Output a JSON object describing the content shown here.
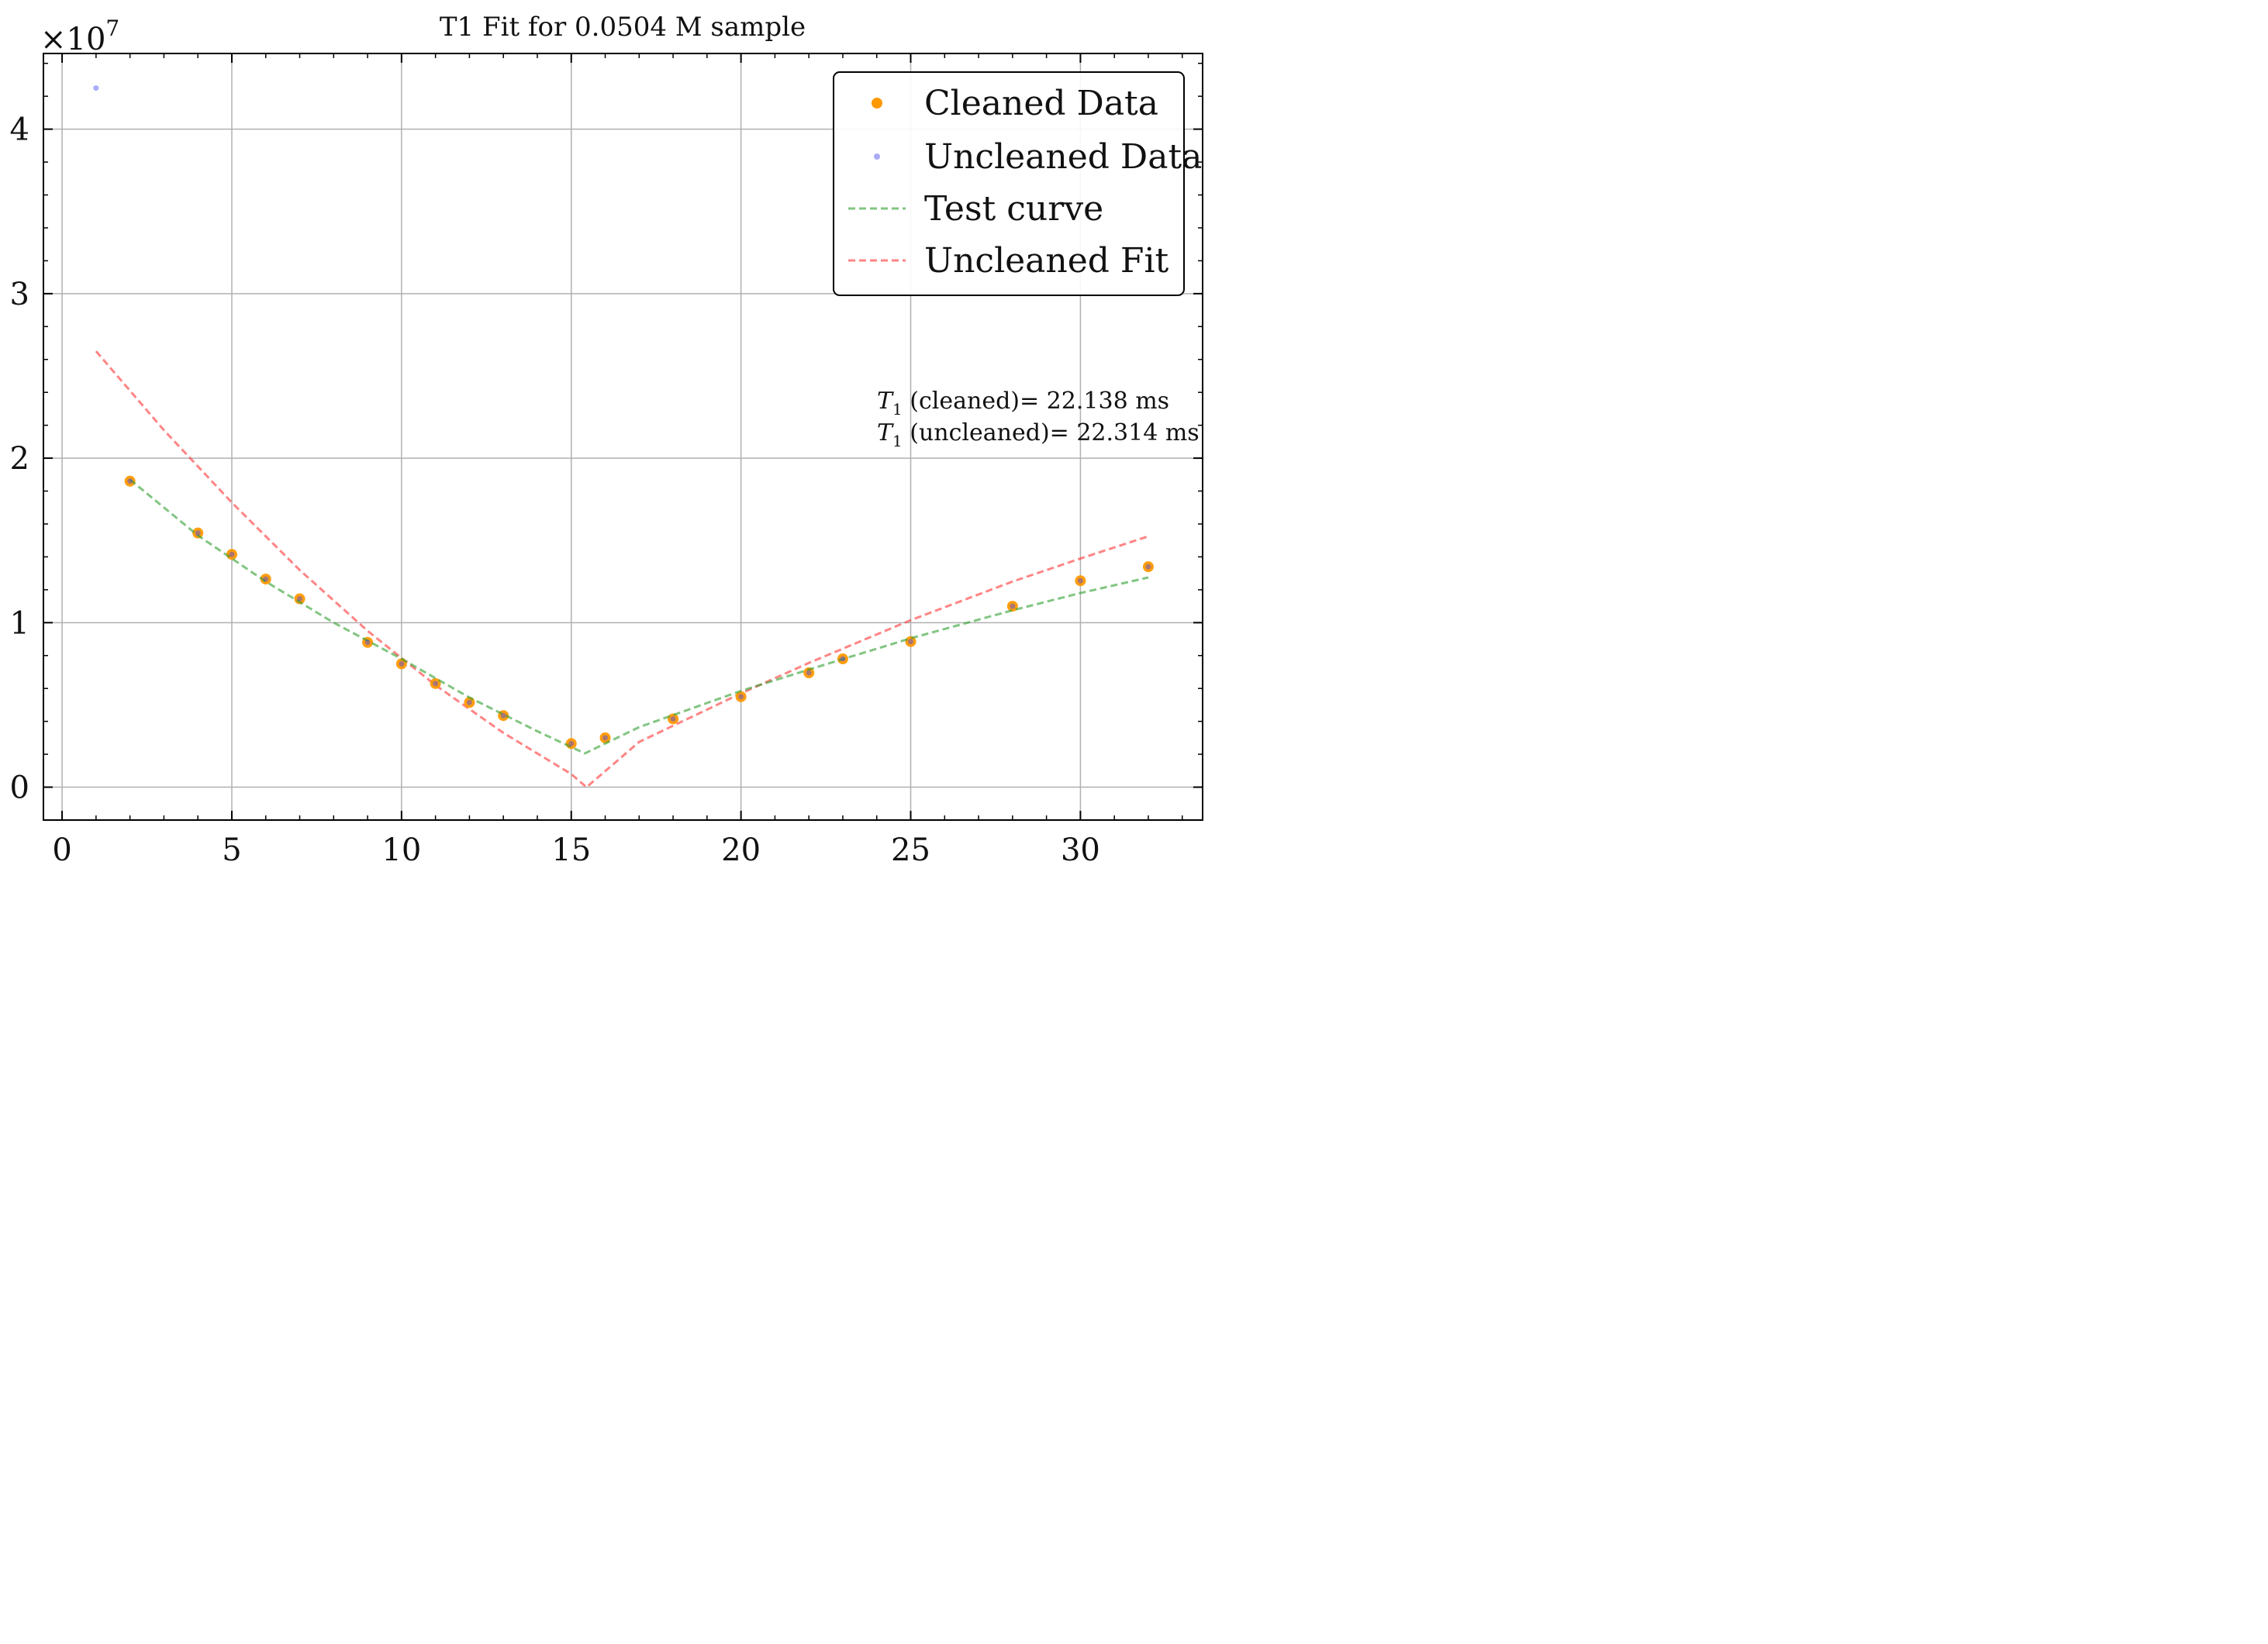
{
  "chart_data": {
    "type": "scatter",
    "title": "T1 Fit for 0.0504 M sample",
    "xlabel": "",
    "ylabel": "",
    "y_exponent_label": "×10",
    "y_exponent_power": "7",
    "y_scale": 10000000,
    "xlim": [
      -0.55,
      33.6
    ],
    "ylim": [
      -2000000,
      44600000
    ],
    "xticks": [
      0,
      5,
      10,
      15,
      20,
      25,
      30
    ],
    "xtick_labels": [
      "0",
      "5",
      "10",
      "15",
      "20",
      "25",
      "30"
    ],
    "yticks": [
      0,
      10000000,
      20000000,
      30000000,
      40000000
    ],
    "ytick_labels": [
      "0",
      "1",
      "2",
      "3",
      "4"
    ],
    "grid": true,
    "legend_position": "top-right",
    "series": [
      {
        "name": "Cleaned Data",
        "kind": "scatter",
        "color": "#ff9900",
        "x": [
          2,
          4,
          5,
          6,
          7,
          9,
          10,
          11,
          12,
          13,
          15,
          16,
          18,
          20,
          22,
          23,
          25,
          28,
          30,
          32
        ],
        "y": [
          18600000,
          15450000,
          14150000,
          12650000,
          11450000,
          8800000,
          7500000,
          6300000,
          5150000,
          4350000,
          2650000,
          3000000,
          4150000,
          5500000,
          6950000,
          7800000,
          8850000,
          11000000,
          12550000,
          13400000
        ]
      },
      {
        "name": "Uncleaned Data",
        "kind": "scatter",
        "color": "#4444ee",
        "x": [
          1,
          2,
          4,
          5,
          6,
          7,
          9,
          10,
          11,
          12,
          13,
          15,
          16,
          18,
          20,
          22,
          23,
          25,
          28,
          30,
          32
        ],
        "y": [
          42500000,
          18600000,
          15450000,
          14150000,
          12650000,
          11450000,
          8800000,
          7500000,
          6300000,
          5150000,
          4350000,
          2650000,
          3000000,
          4150000,
          5500000,
          6950000,
          7800000,
          8850000,
          11000000,
          12550000,
          13400000
        ]
      },
      {
        "name": "Test curve",
        "kind": "line",
        "color": "#2e9e2e",
        "x": [
          2,
          4,
          6,
          8,
          10,
          12,
          14,
          15.4,
          17,
          20,
          22,
          25,
          28,
          30,
          32
        ],
        "y": [
          18700000,
          15300000,
          12500000,
          10000000,
          7800000,
          5450000,
          3400000,
          2050000,
          3650000,
          5850000,
          7150000,
          9050000,
          10750000,
          11800000,
          12750000
        ]
      },
      {
        "name": "Uncleaned Fit",
        "kind": "line",
        "color": "#ff3333",
        "x": [
          1,
          3,
          5,
          7,
          9,
          11,
          13,
          15,
          15.45,
          17,
          20,
          22,
          25,
          28,
          30,
          32
        ],
        "y": [
          26500000,
          21700000,
          17300000,
          13200000,
          9500000,
          6200000,
          3300000,
          800000,
          0,
          2750000,
          5700000,
          7550000,
          10150000,
          12500000,
          13900000,
          15250000
        ]
      }
    ],
    "annotations": [
      {
        "subscript": "1",
        "text": "T",
        "rest": " (cleaned)= 22.138 ms"
      },
      {
        "subscript": "1",
        "text": "T",
        "rest": " (uncleaned)= 22.314 ms"
      }
    ]
  }
}
